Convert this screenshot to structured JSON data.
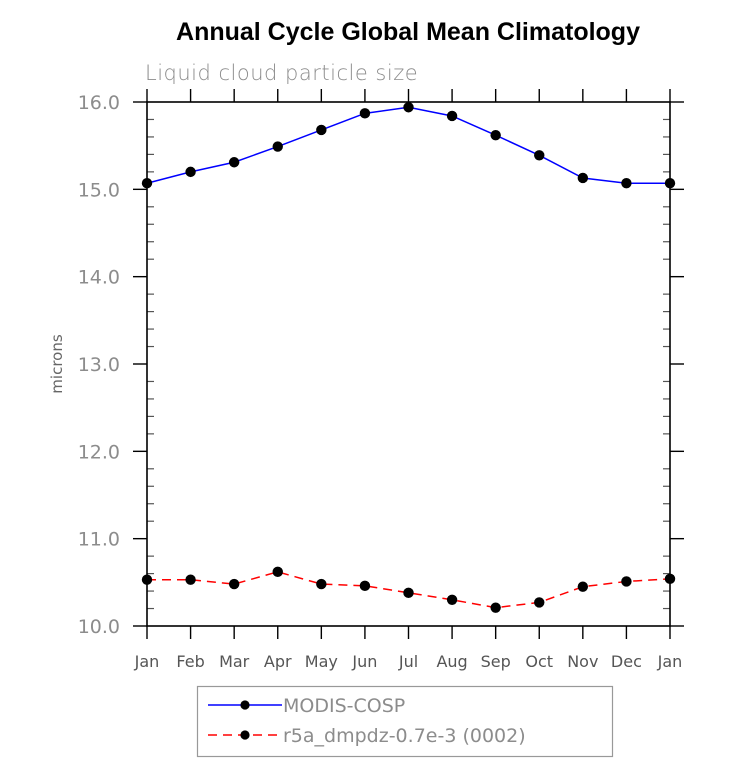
{
  "chart_data": {
    "type": "line",
    "title": "Annual Cycle Global Mean Climatology",
    "subtitle": "Liquid cloud particle size",
    "xlabel": "",
    "ylabel": "microns",
    "categories": [
      "Jan",
      "Feb",
      "Mar",
      "Apr",
      "May",
      "Jun",
      "Jul",
      "Aug",
      "Sep",
      "Oct",
      "Nov",
      "Dec",
      "Jan"
    ],
    "ylim": [
      10.0,
      16.0
    ],
    "yticks": [
      10.0,
      11.0,
      12.0,
      13.0,
      14.0,
      15.0,
      16.0
    ],
    "ytick_labels": [
      "10.0",
      "11.0",
      "12.0",
      "13.0",
      "14.0",
      "15.0",
      "16.0"
    ],
    "y_minor_step": 0.2,
    "grid": false,
    "legend_position": "bottom-center",
    "series": [
      {
        "name": "MODIS-COSP",
        "color": "#0000ff",
        "line_style": "solid",
        "marker": "filled-circle",
        "marker_color": "#000000",
        "values": [
          15.07,
          15.2,
          15.31,
          15.49,
          15.68,
          15.87,
          15.94,
          15.84,
          15.62,
          15.39,
          15.13,
          15.07,
          15.07
        ]
      },
      {
        "name": "r5a_dmpdz-0.7e-3 (0002)",
        "color": "#ff0000",
        "line_style": "dashed",
        "marker": "filled-circle",
        "marker_color": "#000000",
        "values": [
          10.53,
          10.53,
          10.48,
          10.62,
          10.48,
          10.46,
          10.38,
          10.3,
          10.21,
          10.27,
          10.45,
          10.51,
          10.54
        ]
      }
    ]
  }
}
